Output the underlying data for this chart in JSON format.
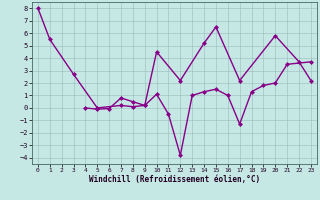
{
  "line1_x": [
    0,
    1,
    3,
    5,
    7,
    8,
    9,
    10,
    12,
    14,
    15,
    17,
    20,
    22,
    23
  ],
  "line1_y": [
    8.0,
    5.5,
    2.7,
    0.0,
    0.2,
    0.1,
    0.2,
    4.5,
    2.2,
    5.2,
    6.5,
    2.2,
    5.8,
    3.7,
    2.2
  ],
  "line2_x": [
    4,
    5,
    6,
    7,
    8,
    9,
    10,
    11,
    12,
    13,
    14,
    15,
    16,
    17,
    18,
    19,
    20,
    21,
    23
  ],
  "line2_y": [
    0.0,
    -0.1,
    -0.05,
    0.8,
    0.5,
    0.2,
    1.1,
    -0.5,
    -3.8,
    1.0,
    1.3,
    1.5,
    1.0,
    -1.3,
    1.3,
    1.8,
    2.0,
    3.5,
    3.7
  ],
  "background": "#c5e8e5",
  "line_color": "#880088",
  "grid_color": "#99bbbb",
  "xlabel": "Windchill (Refroidissement éolien,°C)",
  "ylim": [
    -4.5,
    8.5
  ],
  "xlim": [
    -0.5,
    23.5
  ],
  "yticks": [
    -4,
    -3,
    -2,
    -1,
    0,
    1,
    2,
    3,
    4,
    5,
    6,
    7,
    8
  ],
  "xticks": [
    0,
    1,
    2,
    3,
    4,
    5,
    6,
    7,
    8,
    9,
    10,
    11,
    12,
    13,
    14,
    15,
    16,
    17,
    18,
    19,
    20,
    21,
    22,
    23
  ],
  "xlabel_fontsize": 5.5,
  "tick_fontsize": 5.0,
  "linewidth": 1.0,
  "markersize": 2.0
}
